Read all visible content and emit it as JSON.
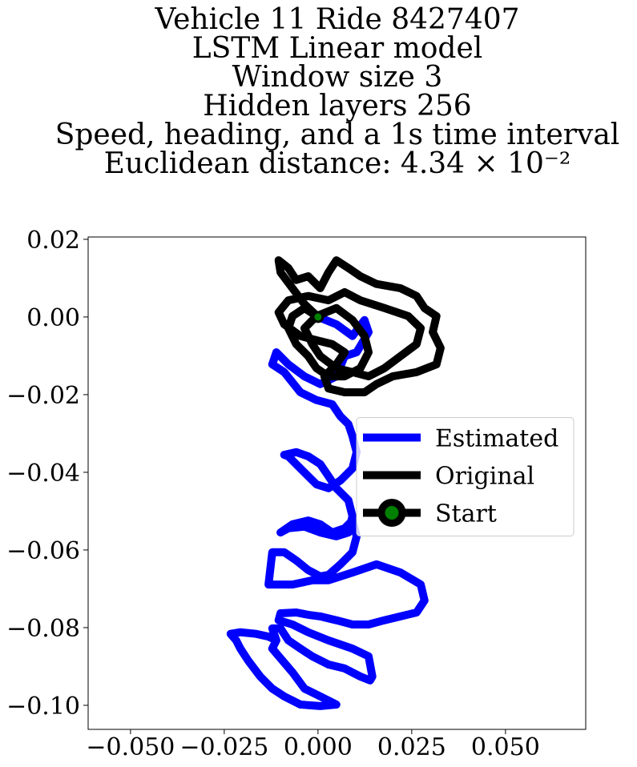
{
  "chart_data": {
    "type": "line",
    "title": [
      "Vehicle 11 Ride 8427407",
      "LSTM Linear model",
      "Window size 3",
      "Hidden layers 256",
      "Speed, heading, and a 1s time interval",
      "Euclidean distance: 4.34 × 10⁻²"
    ],
    "xlim": [
      -0.0613,
      0.0714
    ],
    "ylim": [
      -0.1062,
      0.0206
    ],
    "xticks": [
      {
        "value": -0.05,
        "label": "−0.050"
      },
      {
        "value": -0.025,
        "label": "−0.025"
      },
      {
        "value": 0,
        "label": "0.000"
      },
      0.025,
      {
        "value": 0.05,
        "label": "0.050"
      }
    ],
    "yticks": [
      0.02,
      {
        "value": 0,
        "label": "0.00"
      },
      {
        "value": -0.02,
        "label": "−0.02"
      },
      {
        "value": -0.04,
        "label": "−0.04"
      },
      {
        "value": -0.06,
        "label": "−0.06"
      },
      {
        "value": -0.08,
        "label": "−0.08"
      },
      {
        "value": -0.1,
        "label": "−0.10"
      }
    ],
    "legend": "center right",
    "series": [
      {
        "name": "Estimated",
        "color": "#0000ff",
        "x": [
          0,
          0.0049,
          0.0092,
          0.0124,
          0.0135,
          0.0103,
          0.0071,
          0.0049,
          0.0006,
          -0.0036,
          -0.0079,
          -0.0111,
          -0.0122,
          -0.009,
          -0.0047,
          -0.0004,
          0.0038,
          0.006,
          0.0081,
          0.0092,
          0.0103,
          0.0092,
          0.006,
          0.0028,
          -0.0004,
          -0.0026,
          -0.0047,
          -0.0079,
          -0.009,
          -0.0058,
          -0.0026,
          0.0006,
          0.0028,
          0.0049,
          0.0081,
          0.0092,
          0.0081,
          0.0049,
          0.0006,
          -0.0036,
          -0.0079,
          -0.01,
          -0.0068,
          -0.0026,
          0.0006,
          0.0038,
          0.0071,
          0.0092,
          0.0103,
          0.0092,
          0.006,
          0.0028,
          0.0006,
          -0.0026,
          -0.0058,
          -0.009,
          -0.0122,
          -0.0132,
          -0.01,
          -0.0068,
          -0.0015,
          0.0028,
          0.0092,
          0.0156,
          0.022,
          0.0274,
          0.0284,
          0.0263,
          0.022,
          0.0177,
          0.0135,
          0.0092,
          0.0049,
          0.0006,
          -0.0026,
          -0.0058,
          -0.01,
          -0.0105,
          -0.0068,
          -0.0026,
          0.0028,
          0.0092,
          0.0135,
          0.0145,
          0.0139,
          0.0113,
          0.0071,
          0.0028,
          -0.0015,
          -0.0047,
          -0.0079,
          -0.01,
          -0.0122,
          -0.0111,
          -0.0122,
          -0.0068,
          -0.0036,
          0.0006,
          0.0049,
          0.0006,
          -0.0047,
          -0.009,
          -0.0122,
          -0.0154,
          -0.0186,
          -0.0207,
          -0.0218,
          -0.0233,
          -0.0207,
          -0.0165,
          -0.0132,
          -0.0111
        ],
        "y": [
          0,
          -0.0019,
          -0.0049,
          -0.0008,
          -0.0039,
          -0.0091,
          -0.0101,
          -0.0153,
          -0.0173,
          -0.0153,
          -0.0122,
          -0.0091,
          -0.0122,
          -0.0142,
          -0.0194,
          -0.0214,
          -0.0225,
          -0.0256,
          -0.0276,
          -0.0307,
          -0.0348,
          -0.039,
          -0.0421,
          -0.0441,
          -0.0431,
          -0.041,
          -0.039,
          -0.0359,
          -0.0355,
          -0.0348,
          -0.0359,
          -0.0379,
          -0.041,
          -0.0441,
          -0.0472,
          -0.0513,
          -0.0555,
          -0.0565,
          -0.0555,
          -0.054,
          -0.0544,
          -0.0555,
          -0.0534,
          -0.0524,
          -0.0534,
          -0.0555,
          -0.0544,
          -0.0524,
          -0.0565,
          -0.0606,
          -0.0637,
          -0.0664,
          -0.0668,
          -0.0652,
          -0.0627,
          -0.0606,
          -0.0606,
          -0.0689,
          -0.0689,
          -0.0689,
          -0.0678,
          -0.0678,
          -0.0658,
          -0.0637,
          -0.0658,
          -0.0689,
          -0.073,
          -0.0761,
          -0.0771,
          -0.0781,
          -0.0792,
          -0.0792,
          -0.0781,
          -0.0771,
          -0.0767,
          -0.0761,
          -0.0763,
          -0.0781,
          -0.0792,
          -0.0812,
          -0.0833,
          -0.0854,
          -0.0874,
          -0.0926,
          -0.0936,
          -0.0926,
          -0.0905,
          -0.0895,
          -0.0874,
          -0.0854,
          -0.0833,
          -0.0802,
          -0.0802,
          -0.0833,
          -0.0854,
          -0.0915,
          -0.0957,
          -0.0977,
          -0.0998,
          -0.1002,
          -0.0998,
          -0.0977,
          -0.0957,
          -0.0926,
          -0.0885,
          -0.0854,
          -0.0833,
          -0.0816,
          -0.0812,
          -0.0816,
          -0.0823,
          -0.0833
        ]
      },
      {
        "name": "Original",
        "color": "#000000",
        "x": [
          0,
          -0.0036,
          -0.0068,
          -0.01,
          -0.0105,
          -0.0079,
          -0.0058,
          -0.0026,
          0.0006,
          0.0028,
          0.0049,
          0.0081,
          0.0113,
          0.0156,
          0.022,
          0.0263,
          0.0284,
          0.0316,
          0.0306,
          0.0327,
          0.0316,
          0.0263,
          0.0199,
          0.0156,
          0.0124,
          0.0071,
          0.0028,
          0.0017,
          0.0049,
          0.0071,
          0.0038,
          -0.0004,
          -0.0047,
          -0.009,
          -0.0105,
          -0.0079,
          -0.0026,
          0.0028,
          0.0071,
          0.0113,
          0.0177,
          0.0241,
          0.0274,
          0.0263,
          0.022,
          0.0177,
          0.0135,
          0.0092,
          0.0049,
          0.0006,
          -0.0015,
          -0.0036,
          -0.0004,
          0.0049,
          0.0092,
          0.0124,
          0.0135,
          0.0113,
          0.0071,
          0.0028,
          -0.0004,
          -0.0026,
          -0.0058,
          -0.0079,
          -0.0068,
          -0.0036,
          0
        ],
        "y": [
          0,
          0.0033,
          0.0074,
          0.0115,
          0.0146,
          0.0126,
          0.0095,
          0.0105,
          0.0074,
          0.0115,
          0.0146,
          0.0126,
          0.0105,
          0.0085,
          0.0074,
          0.0054,
          0.0023,
          0.0002,
          -0.0039,
          -0.008,
          -0.0122,
          -0.0142,
          -0.0153,
          -0.0173,
          -0.0194,
          -0.0194,
          -0.0184,
          -0.0153,
          -0.0122,
          -0.0091,
          -0.007,
          -0.006,
          -0.0049,
          -0.0019,
          0.0012,
          0.0043,
          0.0054,
          0.0043,
          0.0064,
          0.0043,
          0.0023,
          0.0002,
          -0.0029,
          -0.007,
          -0.0101,
          -0.0132,
          -0.0153,
          -0.0142,
          -0.0132,
          -0.0101,
          -0.007,
          -0.0029,
          0.0002,
          0.0023,
          -0.0008,
          -0.0049,
          -0.0091,
          -0.0132,
          -0.0153,
          -0.0153,
          -0.0132,
          -0.0101,
          -0.007,
          -0.0029,
          0.0002,
          0.0023,
          0
        ]
      },
      {
        "name": "Start",
        "color": "#008000",
        "marker": true,
        "x": [
          0
        ],
        "y": [
          0
        ]
      }
    ]
  }
}
